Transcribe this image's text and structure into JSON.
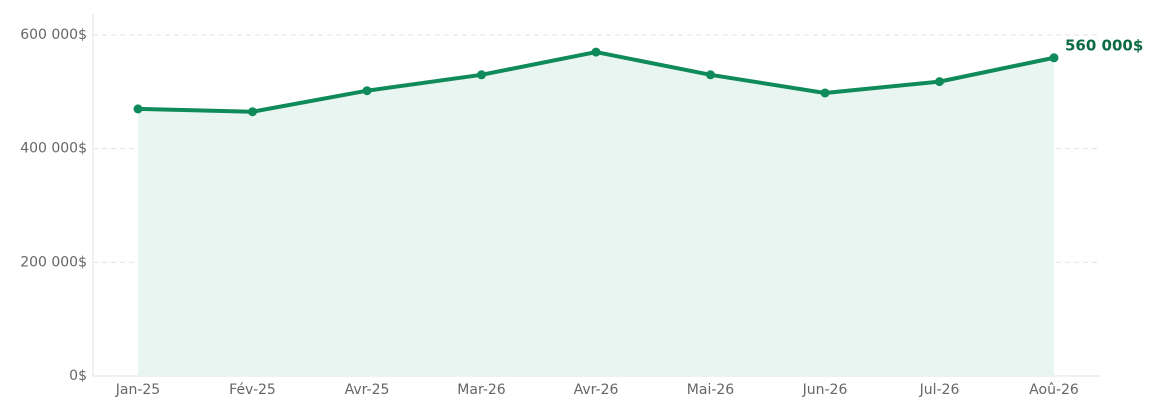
{
  "chart_data": {
    "type": "line",
    "categories": [
      "Jan-25",
      "Fév-25",
      "Avr-25",
      "Mar-26",
      "Avr-26",
      "Mai-26",
      "Jun-26",
      "Jul-26",
      "Aoû-26"
    ],
    "values": [
      470000,
      465000,
      502000,
      530000,
      570000,
      530000,
      498000,
      518000,
      560000
    ],
    "value_labels": [
      null,
      null,
      null,
      null,
      null,
      null,
      null,
      null,
      "560 000$"
    ],
    "color": "#0f8a5a",
    "fill": "#e9f5f0",
    "ylim": [
      0,
      637000
    ],
    "yticks": [
      {
        "value": 0,
        "label": "0$"
      },
      {
        "value": 200000,
        "label": "200 000$"
      },
      {
        "value": 400000,
        "label": "400 000$"
      },
      {
        "value": 600000,
        "label": "600 000$"
      }
    ],
    "grid": true
  }
}
